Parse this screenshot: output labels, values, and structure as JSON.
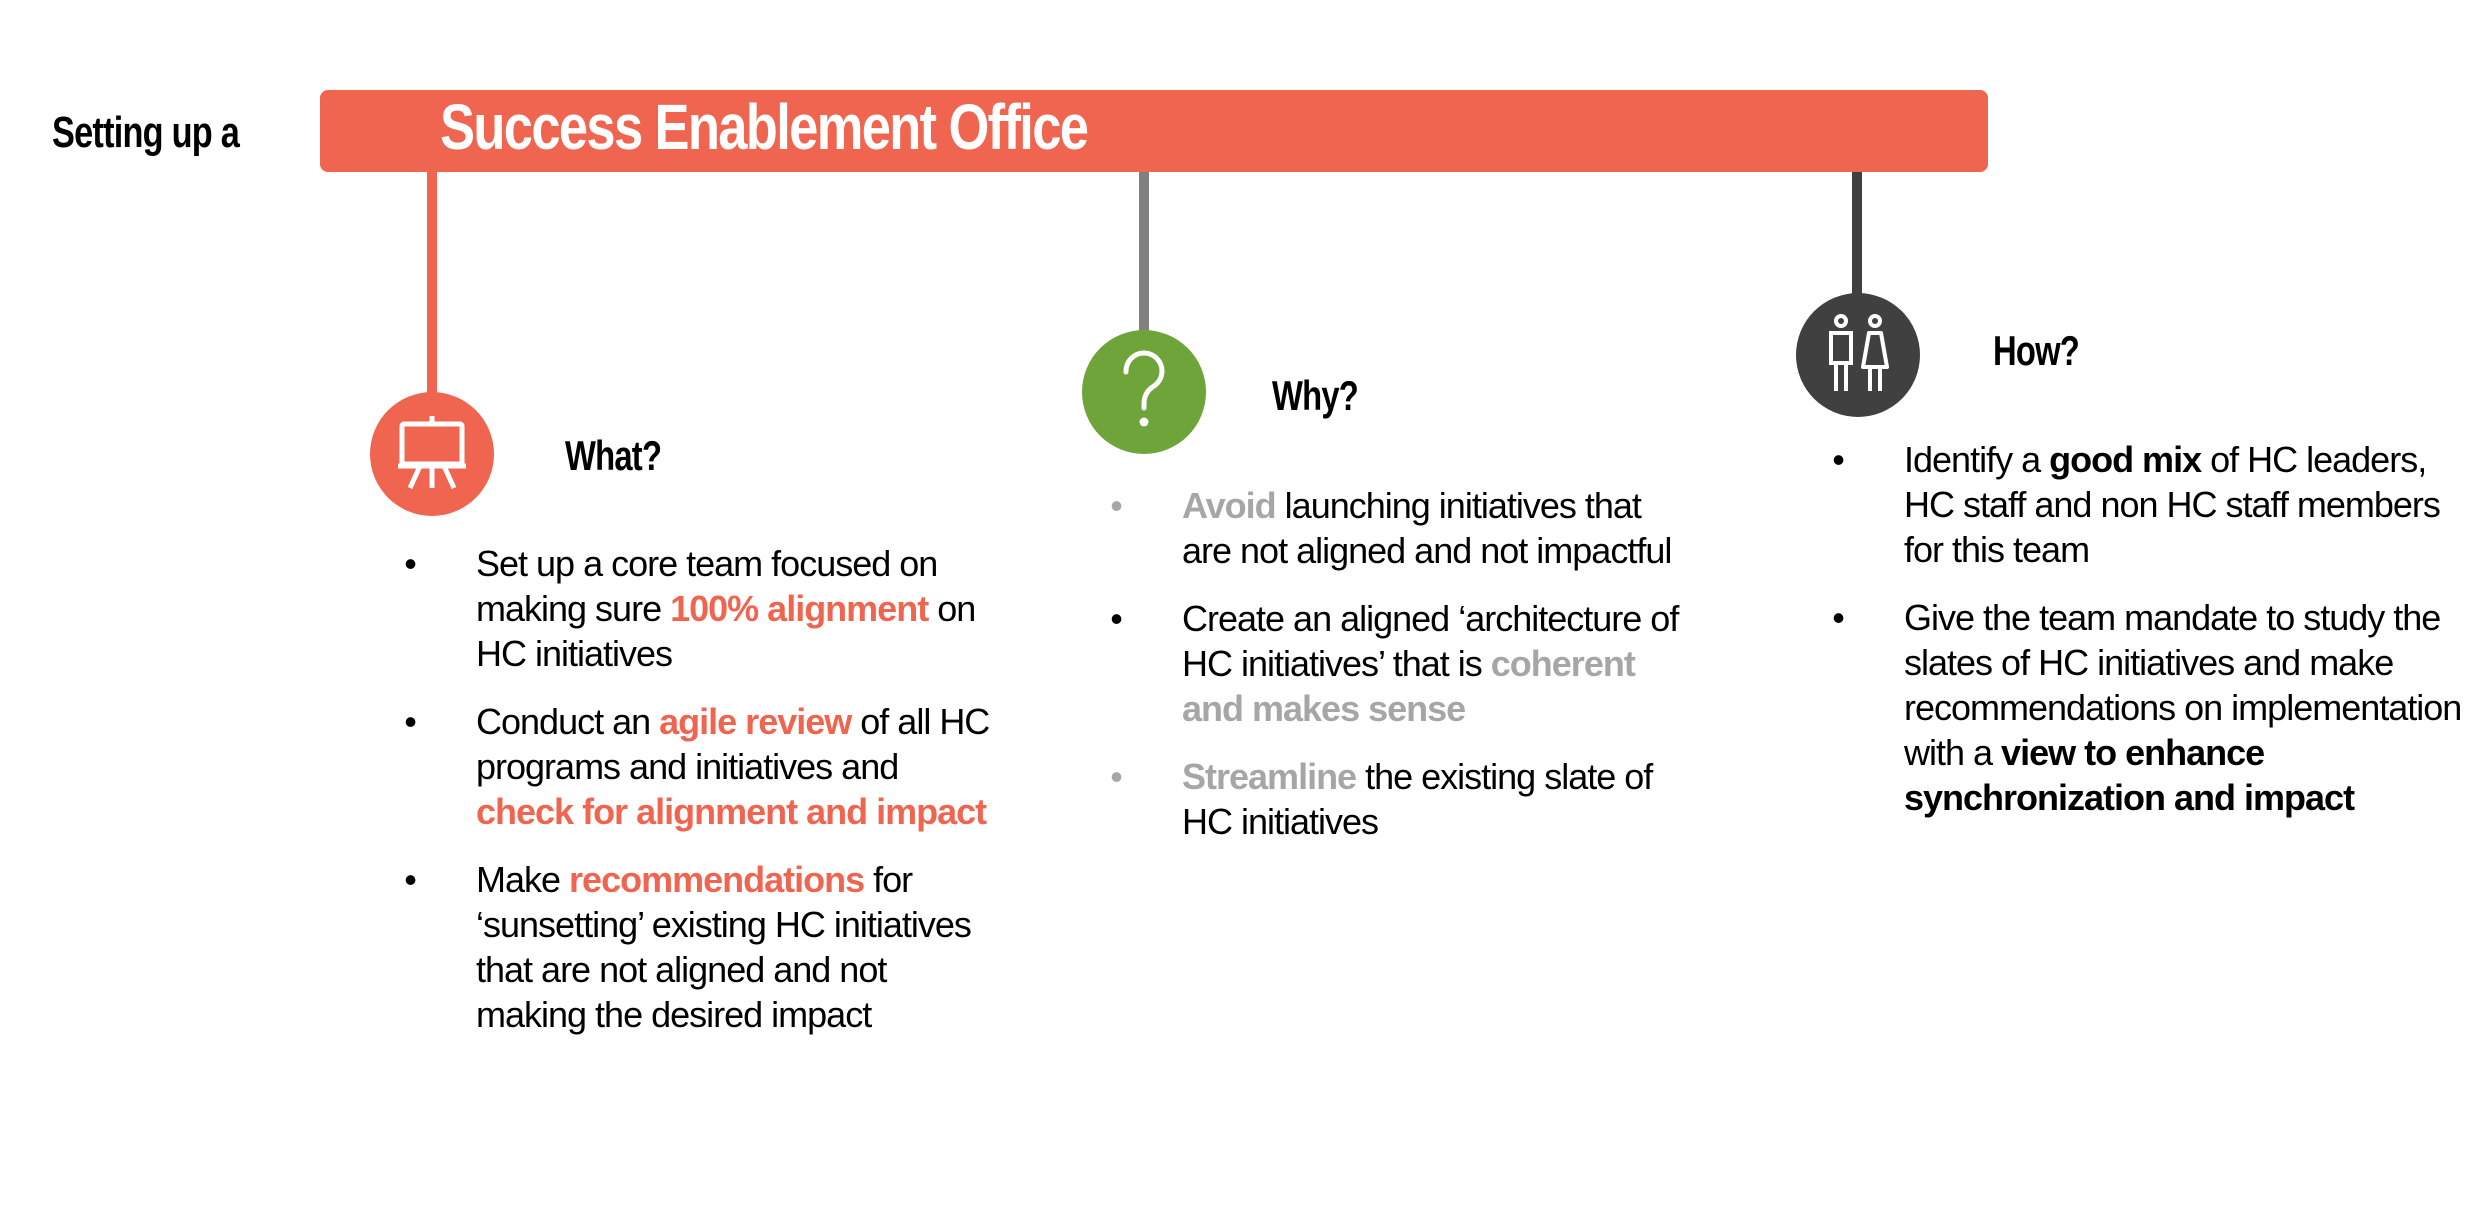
{
  "title": {
    "prefix": "Setting up a",
    "main": "Success Enablement Office"
  },
  "colors": {
    "orange": "#f0654f",
    "green": "#6ea43a",
    "dark": "#404041",
    "gray": "#808080",
    "highlight_gray": "#a6a6a6"
  },
  "columns": {
    "what": {
      "heading": "What?",
      "icon": "presentation-easel-icon",
      "bullets": [
        [
          {
            "t": "Set up a core team focused on making sure "
          },
          {
            "t": "100% alignment",
            "s": "accent-orange"
          },
          {
            "t": " on HC initiatives"
          }
        ],
        [
          {
            "t": "Conduct an "
          },
          {
            "t": "agile review",
            "s": "accent-orange"
          },
          {
            "t": " of all HC programs and initiatives and "
          },
          {
            "t": "check for alignment and impact",
            "s": "accent-orange"
          }
        ],
        [
          {
            "t": "Make "
          },
          {
            "t": "recommendations",
            "s": "accent-orange"
          },
          {
            "t": " for ‘sunsetting’ existing HC initiatives that are not aligned and not making the desired impact"
          }
        ]
      ]
    },
    "why": {
      "heading": "Why?",
      "icon": "question-mark-icon",
      "bullets": [
        [
          {
            "t": "Avoid",
            "s": "accent-gray"
          },
          {
            "t": " launching initiatives that are not aligned and not impactful"
          }
        ],
        [
          {
            "t": "Create an aligned ‘architecture of HC initiatives’ that is "
          },
          {
            "t": "coherent and makes sense",
            "s": "accent-gray"
          }
        ],
        [
          {
            "t": "Streamline",
            "s": "accent-gray"
          },
          {
            "t": " the existing slate of HC initiatives"
          }
        ]
      ]
    },
    "how": {
      "heading": "How?",
      "icon": "people-icon",
      "bullets": [
        [
          {
            "t": "Identify a "
          },
          {
            "t": "good mix",
            "s": "strong"
          },
          {
            "t": " of HC leaders, HC staff and non HC staff members for this team"
          }
        ],
        [
          {
            "t": "Give the team mandate to study the slates of HC initiatives and make recommendations on implementation with a "
          },
          {
            "t": "view to enhance synchronization and impact",
            "s": "strong"
          }
        ]
      ]
    }
  }
}
